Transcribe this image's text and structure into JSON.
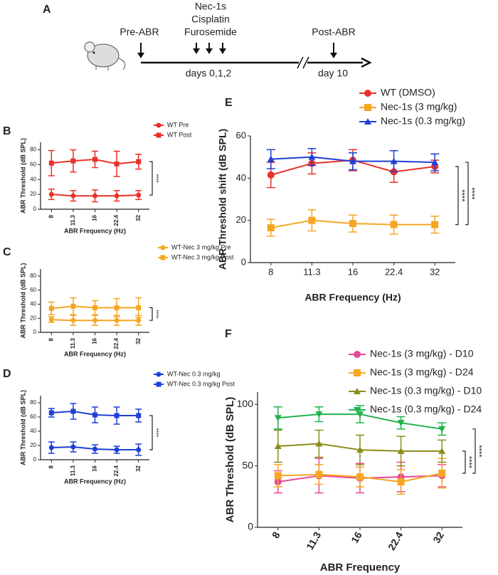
{
  "timeline": {
    "panel": "A",
    "pre": "Pre-ABR",
    "drugs": [
      "Nec-1s",
      "Cisplatin",
      "Furosemide"
    ],
    "days": "days 0,1,2",
    "post": "Post-ABR",
    "day": "day 10"
  },
  "chart_data": [
    {
      "type": "line",
      "panel": "B",
      "categories": [
        "8",
        "11.3",
        "16",
        "22.4",
        "32"
      ],
      "xlabel": "ABR Frequency (Hz)",
      "ylabel": "ABR Threshold (dB SPL)",
      "ylim": [
        0,
        90
      ],
      "yticks": [
        0,
        20,
        40,
        60,
        80
      ],
      "legend_text_color": "#1f3a9c",
      "series": [
        {
          "name": "WT Pre",
          "color": "#e8312a",
          "marker": "circle",
          "values": [
            20,
            18,
            18,
            18,
            19
          ],
          "errors": [
            7,
            7,
            8,
            7,
            6
          ]
        },
        {
          "name": "WT Post",
          "color": "#e8312a",
          "marker": "square",
          "values": [
            62,
            65,
            67,
            61,
            64
          ],
          "errors": [
            17,
            15,
            11,
            17,
            10
          ]
        }
      ],
      "annotations": [
        "****"
      ]
    },
    {
      "type": "line",
      "panel": "C",
      "categories": [
        "8",
        "11.3",
        "16",
        "22.4",
        "32"
      ],
      "xlabel": "ABR Frequency (Hz)",
      "ylabel": "ABR Threshold (dB SPL)",
      "ylim": [
        0,
        90
      ],
      "yticks": [
        0,
        20,
        40,
        60,
        80
      ],
      "legend_text_color": "#1f3a9c",
      "series": [
        {
          "name": "WT-Nec 3 mg/kg Pre",
          "color": "#f5a623",
          "marker": "circle",
          "values": [
            18,
            17,
            17,
            17,
            17
          ],
          "errors": [
            4,
            7,
            7,
            7,
            7
          ]
        },
        {
          "name": "WT-Nec 3 mg/kg Post",
          "color": "#f5a623",
          "marker": "square",
          "values": [
            34,
            37,
            35,
            35,
            35
          ],
          "errors": [
            9,
            12,
            10,
            13,
            14
          ]
        }
      ],
      "annotations": [
        "****"
      ]
    },
    {
      "type": "line",
      "panel": "D",
      "categories": [
        "8",
        "11.3",
        "16",
        "22.4",
        "32"
      ],
      "xlabel": "ABR Frequency (Hz)",
      "ylabel": "ABR Threshold (dB SPL)",
      "ylim": [
        0,
        90
      ],
      "yticks": [
        0,
        20,
        40,
        60,
        80
      ],
      "legend_text_color": "#1f3a9c",
      "series": [
        {
          "name": "WT-Nec 0.3 mg/kg",
          "color": "#1f3fd6",
          "marker": "circle",
          "values": [
            17,
            18,
            15,
            14,
            14
          ],
          "errors": [
            8,
            7,
            6,
            5,
            8
          ]
        },
        {
          "name": "WT-Nec 0.3 mg/kg Post",
          "color": "#1f3fd6",
          "marker": "square",
          "values": [
            66,
            68,
            63,
            62,
            62
          ],
          "errors": [
            6,
            11,
            11,
            12,
            9
          ]
        }
      ],
      "annotations": [
        "****"
      ]
    },
    {
      "type": "line",
      "panel": "E",
      "categories": [
        "8",
        "11.3",
        "16",
        "22.4",
        "32"
      ],
      "xlabel": "ABR Frequency (Hz)",
      "ylabel": "ABR Threshold shift (dB SPL)",
      "ylim": [
        0,
        60
      ],
      "yticks": [
        0,
        20,
        40,
        60
      ],
      "legend_text_color": "#1f3a9c",
      "series": [
        {
          "name": "WT (DMSO)",
          "color": "#e8312a",
          "marker": "circle",
          "values": [
            41.5,
            47,
            48.5,
            43,
            45.5
          ],
          "errors": [
            6,
            5,
            5,
            5,
            3
          ]
        },
        {
          "name": "Nec-1s (3 mg/kg)",
          "color": "#f5a623",
          "marker": "square",
          "values": [
            16.5,
            20,
            18.5,
            18,
            18
          ],
          "errors": [
            4,
            5,
            4,
            4.5,
            4
          ]
        },
        {
          "name": "Nec-1s (0.3 mg/kg)",
          "color": "#1f3fd6",
          "marker": "triangle",
          "values": [
            49,
            50,
            48,
            48,
            47.5
          ],
          "errors": [
            4.5,
            4,
            4,
            5,
            4
          ]
        }
      ],
      "annotations": [
        "****",
        "****"
      ]
    },
    {
      "type": "line",
      "panel": "F",
      "categories": [
        "8",
        "11.3",
        "16",
        "22.4",
        "32"
      ],
      "xlabel": "ABR Frequency",
      "ylabel": "ABR Threshold (dB SPL)",
      "ylim": [
        0,
        110
      ],
      "yticks": [
        0,
        50,
        100
      ],
      "legend_text_color": "#1f3a9c",
      "series": [
        {
          "name": "Nec-1s (3 mg/kg) - D10",
          "color": "#e9479a",
          "marker": "circle",
          "values": [
            37,
            42,
            40,
            41,
            42
          ],
          "errors": [
            9,
            14,
            12,
            12,
            9
          ]
        },
        {
          "name": "Nec-1s (3 mg/kg) - D24",
          "color": "#f5a623",
          "marker": "square",
          "values": [
            42,
            43,
            41,
            37,
            44
          ],
          "errors": [
            9,
            8,
            8,
            10,
            12
          ]
        },
        {
          "name": "Nec-1s (0.3 mg/kg) - D10",
          "color": "#8c8c1a",
          "marker": "triangle",
          "values": [
            66,
            68,
            63,
            62,
            62
          ],
          "errors": [
            13,
            11,
            12,
            12,
            9
          ]
        },
        {
          "name": "Nec-1s (0.3 mg/kg) - D24",
          "color": "#21b14b",
          "marker": "triangle-down",
          "values": [
            89,
            92,
            92,
            85,
            80
          ],
          "errors": [
            9,
            6,
            7,
            5,
            5
          ]
        }
      ],
      "annotations": [
        "****",
        "****"
      ]
    }
  ]
}
